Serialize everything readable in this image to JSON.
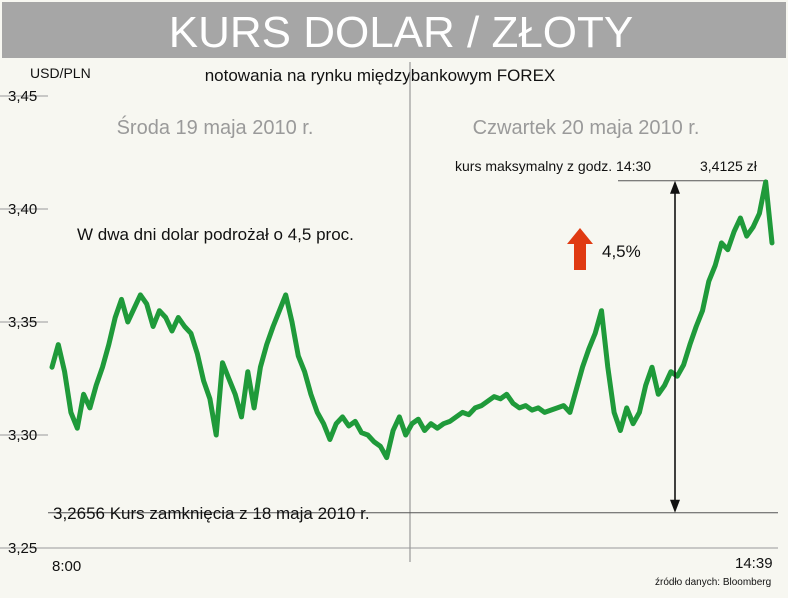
{
  "title": "KURS DOLAR / ZŁOTY",
  "subtitle": "notowania na rynku międzybankowym FOREX",
  "source": "źródło danych: Bloomberg",
  "colors": {
    "background": "#f7f7f1",
    "title_band": "#a6a6a6",
    "series": "#1f9a3a",
    "arrow_up": "#e03a12",
    "grid": "#9a9a9a"
  },
  "chart_data": {
    "type": "line",
    "ylabel": "USD/PLN",
    "ylim": [
      3.25,
      3.45
    ],
    "yticks": [
      "3,45",
      "3,40",
      "3,35",
      "3,30",
      "3,25"
    ],
    "ytick_values": [
      3.45,
      3.4,
      3.35,
      3.3,
      3.25
    ],
    "xtick_labels": [
      "8:00",
      "14:39"
    ],
    "day_labels": [
      "Środa 19 maja 2010 r.",
      "Czwartek 20 maja 2010 r."
    ],
    "annotations": {
      "gain_note": "W dwa dni dolar podrożał o 4,5 proc.",
      "max_note": "kurs maksymalny z godz. 14:30",
      "max_value": "3,4125 zł",
      "close_note": "3,2656 Kurs zamknięcia z 18 maja 2010 r.",
      "close_value": 3.2656,
      "max_value_num": 3.4125,
      "pct": "4,5%"
    },
    "series": [
      {
        "values": [
          3.33,
          3.34,
          3.328,
          3.31,
          3.303,
          3.318,
          3.312,
          3.322,
          3.33,
          3.34,
          3.352,
          3.36,
          3.35,
          3.356,
          3.362,
          3.358,
          3.348,
          3.355,
          3.352,
          3.346,
          3.352,
          3.348,
          3.345,
          3.336,
          3.324,
          3.316,
          3.3,
          3.332,
          3.325,
          3.318,
          3.308,
          3.328,
          3.312,
          3.33,
          3.34,
          3.348,
          3.355,
          3.362,
          3.35,
          3.335,
          3.328,
          3.318,
          3.31,
          3.305,
          3.298,
          3.305,
          3.308,
          3.304,
          3.306,
          3.301,
          3.3,
          3.297,
          3.295,
          3.29,
          3.302,
          3.308,
          3.3,
          3.305,
          3.307,
          3.302,
          3.305,
          3.303,
          3.305,
          3.306,
          3.308,
          3.31,
          3.309,
          3.312,
          3.313,
          3.315,
          3.317,
          3.316,
          3.318,
          3.314,
          3.312,
          3.313,
          3.311,
          3.312,
          3.31,
          3.311,
          3.312,
          3.313,
          3.31,
          3.32,
          3.33,
          3.338,
          3.345,
          3.355,
          3.33,
          3.31,
          3.302,
          3.312,
          3.305,
          3.31,
          3.322,
          3.33,
          3.318,
          3.322,
          3.328,
          3.326,
          3.331,
          3.34,
          3.348,
          3.355,
          3.368,
          3.375,
          3.385,
          3.382,
          3.39,
          3.396,
          3.388,
          3.392,
          3.398,
          3.412,
          3.385
        ]
      }
    ]
  }
}
